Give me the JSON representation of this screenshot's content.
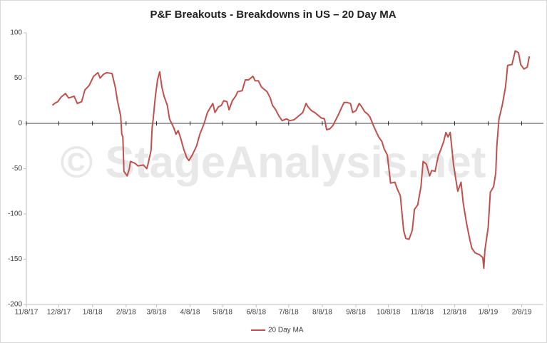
{
  "chart_data": {
    "type": "line",
    "title": "P&F Breakouts - Breakdowns in US – 20 Day MA",
    "watermark": "© StageAnalysis.net",
    "x": [
      "12/2/17",
      "12/4/17",
      "12/7/17",
      "12/10/17",
      "12/14/17",
      "12/17/17",
      "12/22/17",
      "12/25/17",
      "12/29/17",
      "1/1/18",
      "1/5/18",
      "1/9/18",
      "1/13/18",
      "1/15/18",
      "1/18/18",
      "1/21/18",
      "1/26/18",
      "1/29/18",
      "1/31/18",
      "2/3/18",
      "2/4/18",
      "2/5/18",
      "2/6/18",
      "2/9/18",
      "2/11/18",
      "2/12/18",
      "2/16/18",
      "2/19/18",
      "2/24/18",
      "2/27/18",
      "2/28/18",
      "3/3/18",
      "3/4/18",
      "3/5/18",
      "3/7/18",
      "3/9/18",
      "3/11/18",
      "3/13/18",
      "3/15/18",
      "3/18/18",
      "3/20/18",
      "3/24/18",
      "3/26/18",
      "3/28/18",
      "3/30/18",
      "4/2/18",
      "4/5/18",
      "4/7/18",
      "4/10/18",
      "4/14/18",
      "4/17/18",
      "4/21/18",
      "4/24/18",
      "4/27/18",
      "4/29/18",
      "5/1/18",
      "5/4/18",
      "5/7/18",
      "5/9/18",
      "5/12/18",
      "5/14/18",
      "5/17/18",
      "5/20/18",
      "5/22/18",
      "5/26/18",
      "5/29/18",
      "6/1/18",
      "6/3/18",
      "6/5/18",
      "6/7/18",
      "6/10/18",
      "6/13/18",
      "6/15/18",
      "6/18/18",
      "6/21/18",
      "6/23/18",
      "6/26/18",
      "6/29/18",
      "7/2/18",
      "7/6/18",
      "7/9/18",
      "7/13/18",
      "7/17/18",
      "7/21/18",
      "7/24/18",
      "7/26/18",
      "7/29/18",
      "8/1/18",
      "8/5/18",
      "8/7/18",
      "8/10/18",
      "8/12/18",
      "8/15/18",
      "8/18/18",
      "8/20/18",
      "8/23/18",
      "8/26/18",
      "8/28/18",
      "8/31/18",
      "9/3/18",
      "9/5/18",
      "9/8/18",
      "9/11/18",
      "9/13/18",
      "9/16/18",
      "9/19/18",
      "9/21/18",
      "9/24/18",
      "9/27/18",
      "9/29/18",
      "10/2/18",
      "10/4/18",
      "10/7/18",
      "10/10/18",
      "10/14/18",
      "10/16/18",
      "10/19/18",
      "10/22/18",
      "10/24/18",
      "10/27/18",
      "10/30/18",
      "11/1/18",
      "11/4/18",
      "11/7/18",
      "11/9/18",
      "11/12/18",
      "11/15/18",
      "11/17/18",
      "11/20/18",
      "11/23/18",
      "11/25/18",
      "11/28/18",
      "11/30/18",
      "12/2/18",
      "12/4/18",
      "12/7/18",
      "12/10/18",
      "12/11/18",
      "12/14/18",
      "12/16/18",
      "12/19/18",
      "12/22/18",
      "12/24/18",
      "12/27/18",
      "12/31/18",
      "1/3/19",
      "1/4/19",
      "1/5/19",
      "1/8/19",
      "1/10/19",
      "1/13/19",
      "1/15/19",
      "1/16/19",
      "1/18/19",
      "1/21/19",
      "1/24/19",
      "1/26/19",
      "1/30/19",
      "2/2/19",
      "2/5/19",
      "2/7/19",
      "2/10/19",
      "2/13/19",
      "2/15/19"
    ],
    "series": [
      {
        "name": "20 Day MA",
        "color": "#c0504d",
        "values": [
          20,
          22,
          24,
          29,
          33,
          28,
          30,
          22,
          24,
          37,
          42,
          52,
          56,
          50,
          54,
          56,
          55,
          40,
          25,
          8,
          -12,
          -15,
          -53,
          -58,
          -50,
          -42,
          -44,
          -47,
          -46,
          -50,
          -46,
          -30,
          -5,
          5,
          30,
          48,
          57,
          40,
          30,
          20,
          5,
          -5,
          -12,
          -8,
          -15,
          -28,
          -38,
          -41,
          -35,
          -25,
          -12,
          0,
          12,
          18,
          22,
          12,
          18,
          20,
          25,
          24,
          15,
          25,
          30,
          35,
          36,
          48,
          48,
          50,
          52,
          47,
          47,
          40,
          38,
          35,
          28,
          20,
          15,
          8,
          3,
          5,
          3,
          4,
          8,
          12,
          22,
          18,
          14,
          12,
          8,
          6,
          5,
          -7,
          -6,
          -2,
          3,
          10,
          18,
          23,
          23,
          22,
          12,
          14,
          22,
          19,
          13,
          10,
          7,
          -2,
          -10,
          -15,
          -20,
          -28,
          -35,
          -66,
          -65,
          -72,
          -80,
          -118,
          -127,
          -128,
          -118,
          -95,
          -90,
          -70,
          -42,
          -45,
          -58,
          -52,
          -53,
          -36,
          -30,
          -20,
          -10,
          -15,
          -10,
          -45,
          -68,
          -75,
          -65,
          -88,
          -110,
          -128,
          -138,
          -143,
          -145,
          -148,
          -160,
          -140,
          -115,
          -76,
          -70,
          -55,
          -25,
          5,
          20,
          40,
          64,
          65,
          80,
          78,
          65,
          60,
          62,
          74
        ]
      }
    ],
    "xlim": [
      "11/8/17",
      "2/28/19"
    ],
    "xticks": [
      "11/8/17",
      "12/8/17",
      "1/8/18",
      "2/8/18",
      "3/8/18",
      "4/8/18",
      "5/8/18",
      "6/8/18",
      "7/8/18",
      "8/8/18",
      "9/8/18",
      "10/8/18",
      "11/8/18",
      "12/8/18",
      "1/8/19",
      "2/8/19"
    ],
    "ylim": [
      -200,
      100
    ],
    "yticks": [
      100,
      50,
      0,
      -50,
      -100,
      -150,
      -200
    ],
    "legend": "bottom"
  }
}
